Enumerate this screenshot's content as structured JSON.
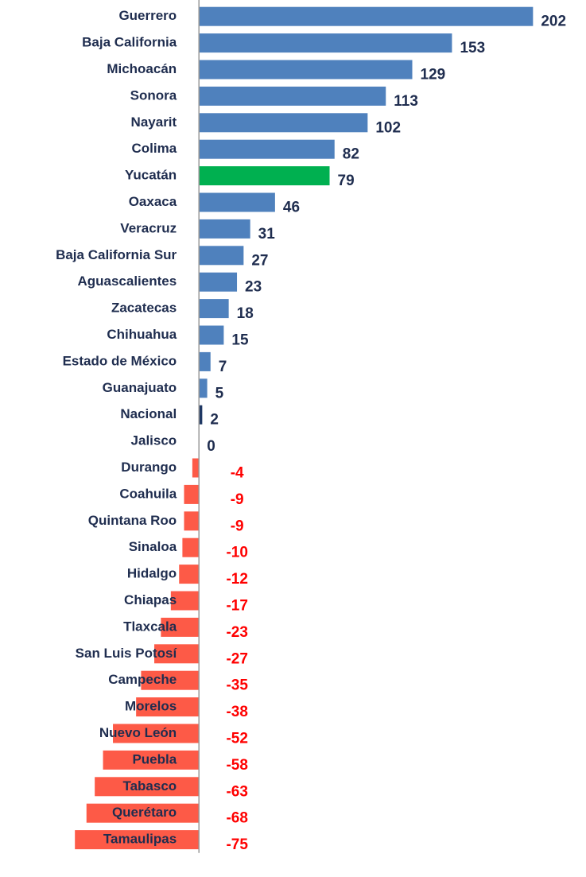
{
  "chart_data": {
    "type": "bar",
    "orientation": "horizontal",
    "categories": [
      "Guerrero",
      "Baja California",
      "Michoacán",
      "Sonora",
      "Nayarit",
      "Colima",
      "Yucatán",
      "Oaxaca",
      "Veracruz",
      "Baja California Sur",
      "Aguascalientes",
      "Zacatecas",
      "Chihuahua",
      "Estado de México",
      "Guanajuato",
      "Nacional",
      "Jalisco",
      "Durango",
      "Coahuila",
      "Quintana Roo",
      "Sinaloa",
      "Hidalgo",
      "Chiapas",
      "Tlaxcala",
      "San Luis Potosí",
      "Campeche",
      "Morelos",
      "Nuevo León",
      "Puebla",
      "Tabasco",
      "Querétaro",
      "Tamaulipas"
    ],
    "values": [
      202,
      153,
      129,
      113,
      102,
      82,
      79,
      46,
      31,
      27,
      23,
      18,
      15,
      7,
      5,
      2,
      0,
      -4,
      -9,
      -9,
      -10,
      -12,
      -17,
      -23,
      -27,
      -35,
      -38,
      -52,
      -58,
      -63,
      -68,
      -75
    ],
    "colors": [
      "#4f81bd",
      "#4f81bd",
      "#4f81bd",
      "#4f81bd",
      "#4f81bd",
      "#4f81bd",
      "#00b050",
      "#4f81bd",
      "#4f81bd",
      "#4f81bd",
      "#4f81bd",
      "#4f81bd",
      "#4f81bd",
      "#4f81bd",
      "#4f81bd",
      "#1f3864",
      "#4f81bd",
      "#fd5a47",
      "#fd5a47",
      "#fd5a47",
      "#fd5a47",
      "#fd5a47",
      "#fd5a47",
      "#fd5a47",
      "#fd5a47",
      "#fd5a47",
      "#fd5a47",
      "#fd5a47",
      "#fd5a47",
      "#fd5a47",
      "#fd5a47",
      "#fd5a47"
    ],
    "positive_label_color": "#1f2d4f",
    "negative_label_color": "#ff0000",
    "xlim": [
      -90,
      210
    ]
  }
}
